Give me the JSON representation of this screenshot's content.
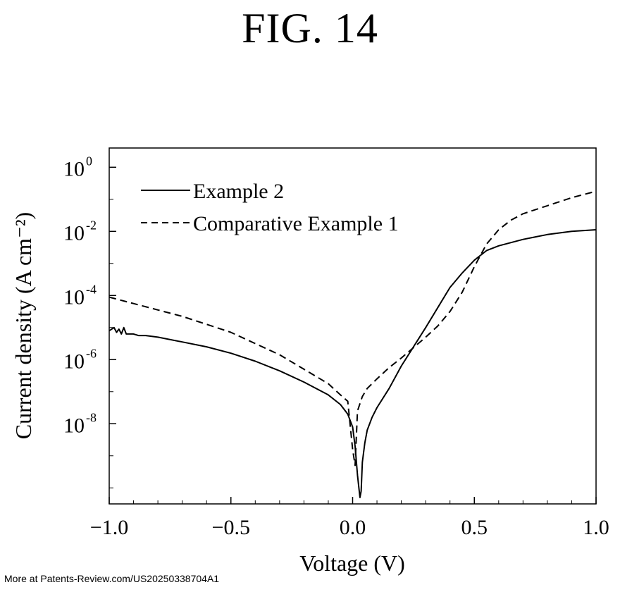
{
  "figure": {
    "title": "FIG. 14",
    "footer": "More at Patents-Review.com/US20250338704A1"
  },
  "chart_data": {
    "type": "line",
    "xlabel": "Voltage (V)",
    "ylabel": "Current density (A cm⁻²)",
    "xlim": [
      -1.0,
      1.0
    ],
    "ylim_log10": [
      -10.5,
      0.6
    ],
    "y_scale": "log",
    "x_ticks": [
      -1.0,
      -0.5,
      0.0,
      0.5,
      1.0
    ],
    "x_tick_labels": [
      "−1.0",
      "−0.5",
      "0.0",
      "0.5",
      "1.0"
    ],
    "y_ticks_log10": [
      0,
      -2,
      -4,
      -6,
      -8
    ],
    "y_tick_labels": [
      {
        "base": "10",
        "exp": "0"
      },
      {
        "base": "10",
        "exp": "-2"
      },
      {
        "base": "10",
        "exp": "-4"
      },
      {
        "base": "10",
        "exp": "-6"
      },
      {
        "base": "10",
        "exp": "-8"
      }
    ],
    "legend_position": "top-left",
    "grid": false,
    "series": [
      {
        "name": "Example 2",
        "style": "solid",
        "color": "#000000",
        "x": [
          -1.0,
          -0.98,
          -0.97,
          -0.96,
          -0.95,
          -0.94,
          -0.93,
          -0.9,
          -0.88,
          -0.85,
          -0.8,
          -0.7,
          -0.6,
          -0.5,
          -0.4,
          -0.3,
          -0.2,
          -0.1,
          -0.05,
          -0.02,
          0.0,
          0.01,
          0.02,
          0.03,
          0.035,
          0.04,
          0.05,
          0.06,
          0.08,
          0.1,
          0.15,
          0.2,
          0.3,
          0.4,
          0.45,
          0.5,
          0.55,
          0.6,
          0.7,
          0.8,
          0.9,
          1.0
        ],
        "log10_y": [
          -5.1,
          -5.0,
          -5.15,
          -5.05,
          -5.2,
          -5.0,
          -5.2,
          -5.2,
          -5.25,
          -5.25,
          -5.3,
          -5.45,
          -5.6,
          -5.8,
          -6.05,
          -6.35,
          -6.7,
          -7.1,
          -7.4,
          -7.7,
          -8.1,
          -8.7,
          -9.6,
          -10.3,
          -10.1,
          -9.2,
          -8.6,
          -8.2,
          -7.8,
          -7.5,
          -6.9,
          -6.2,
          -5.0,
          -3.75,
          -3.3,
          -2.9,
          -2.6,
          -2.45,
          -2.25,
          -2.1,
          -2.0,
          -1.95
        ]
      },
      {
        "name": "Comparative Example 1",
        "style": "dashed",
        "color": "#000000",
        "x": [
          -1.0,
          -0.9,
          -0.8,
          -0.7,
          -0.6,
          -0.5,
          -0.4,
          -0.3,
          -0.2,
          -0.1,
          -0.05,
          -0.02,
          0.0,
          0.01,
          0.02,
          0.04,
          0.06,
          0.1,
          0.15,
          0.2,
          0.3,
          0.35,
          0.4,
          0.45,
          0.5,
          0.55,
          0.6,
          0.65,
          0.7,
          0.8,
          0.9,
          1.0
        ],
        "log10_y": [
          -4.05,
          -4.25,
          -4.45,
          -4.65,
          -4.9,
          -5.15,
          -5.5,
          -5.85,
          -6.3,
          -6.75,
          -7.1,
          -7.3,
          -8.8,
          -9.3,
          -7.6,
          -7.15,
          -6.9,
          -6.6,
          -6.25,
          -5.95,
          -5.3,
          -4.95,
          -4.5,
          -3.9,
          -3.1,
          -2.4,
          -1.95,
          -1.65,
          -1.45,
          -1.2,
          -0.95,
          -0.75
        ]
      }
    ]
  }
}
